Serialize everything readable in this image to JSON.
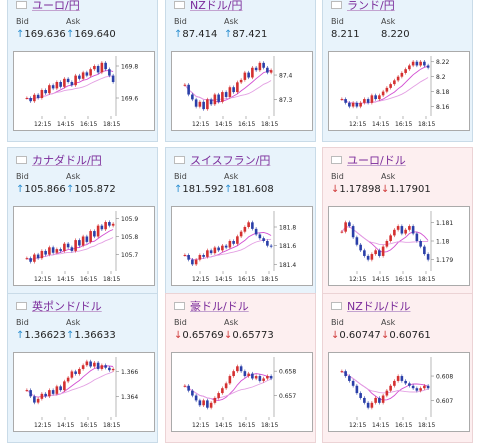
{
  "colors": {
    "up": "#2a8fd1",
    "down": "#d03a3a",
    "ma": "#d24fd2",
    "title": "#7a2a9a"
  },
  "labels": {
    "bid": "Bid",
    "ask": "Ask"
  },
  "panels": [
    {
      "name": "ユーロ/円",
      "flag": "eu-flag-icon",
      "dir": "up",
      "arrow": "↑",
      "bid": "169.636",
      "ask": "169.640",
      "chart_data": {
        "type": "candlestick",
        "x_ticks": [
          "12:15",
          "14:15",
          "16:15",
          "18:15"
        ],
        "y_ticks": [
          "169.8",
          "169.6"
        ],
        "yrange": [
          169.5,
          169.85
        ],
        "closes": [
          169.6,
          169.58,
          169.62,
          169.6,
          169.65,
          169.63,
          169.68,
          169.66,
          169.7,
          169.67,
          169.72,
          169.7,
          169.68,
          169.74,
          169.72,
          169.76,
          169.74,
          169.78,
          169.8,
          169.76,
          169.82,
          169.78,
          169.74,
          169.7
        ]
      }
    },
    {
      "name": "NZドル/円",
      "flag": "nz-flag-icon",
      "dir": "up",
      "arrow": "↑",
      "bid": "87.414",
      "ask": "87.421",
      "chart_data": {
        "type": "candlestick",
        "x_ticks": [
          "12:15",
          "14:15",
          "16:15",
          "18:15"
        ],
        "y_ticks": [
          "87.4",
          "87.3"
        ],
        "yrange": [
          87.24,
          87.47
        ],
        "closes": [
          87.36,
          87.32,
          87.3,
          87.27,
          87.29,
          87.26,
          87.3,
          87.28,
          87.32,
          87.29,
          87.33,
          87.31,
          87.35,
          87.33,
          87.37,
          87.38,
          87.41,
          87.39,
          87.43,
          87.42,
          87.45,
          87.43,
          87.41,
          87.42
        ]
      }
    },
    {
      "name": "ランド/円",
      "flag": "za-flag-icon",
      "dir": "up",
      "arrow": "",
      "bid": "8.211",
      "ask": "8.220",
      "chart_data": {
        "type": "candlestick",
        "x_ticks": [
          "12:15",
          "14:15",
          "16:15",
          "18:15"
        ],
        "y_ticks": [
          "8.22",
          "8.2",
          "8.18",
          "8.16"
        ],
        "yrange": [
          8.15,
          8.225
        ],
        "closes": [
          8.17,
          8.165,
          8.16,
          8.165,
          8.16,
          8.165,
          8.17,
          8.165,
          8.175,
          8.17,
          8.175,
          8.18,
          8.185,
          8.19,
          8.195,
          8.2,
          8.205,
          8.21,
          8.215,
          8.22,
          8.215,
          8.22,
          8.215,
          8.212
        ]
      }
    },
    {
      "name": "カナダドル/円",
      "flag": "ca-flag-icon",
      "dir": "up",
      "arrow": "↑",
      "bid": "105.866",
      "ask": "105.872",
      "chart_data": {
        "type": "candlestick",
        "x_ticks": [
          "12:15",
          "14:15",
          "16:15",
          "18:15"
        ],
        "y_ticks": [
          "105.9",
          "105.8",
          "105.7"
        ],
        "yrange": [
          105.62,
          105.93
        ],
        "closes": [
          105.68,
          105.66,
          105.7,
          105.68,
          105.72,
          105.7,
          105.74,
          105.71,
          105.73,
          105.72,
          105.76,
          105.74,
          105.72,
          105.78,
          105.75,
          105.8,
          105.77,
          105.83,
          105.8,
          105.86,
          105.84,
          105.88,
          105.86,
          105.87
        ]
      }
    },
    {
      "name": "スイスフラン/円",
      "flag": "ch-flag-icon",
      "dir": "up",
      "arrow": "↑",
      "bid": "181.592",
      "ask": "181.608",
      "chart_data": {
        "type": "candlestick",
        "x_ticks": [
          "12:15",
          "14:15",
          "16:15",
          "18:15"
        ],
        "y_ticks": [
          "181.8",
          "181.6",
          "181.4"
        ],
        "yrange": [
          181.35,
          181.95
        ],
        "closes": [
          181.5,
          181.45,
          181.4,
          181.45,
          181.5,
          181.48,
          181.55,
          181.52,
          181.58,
          181.55,
          181.6,
          181.58,
          181.65,
          181.62,
          181.7,
          181.75,
          181.8,
          181.85,
          181.78,
          181.72,
          181.68,
          181.65,
          181.6,
          181.59
        ]
      }
    },
    {
      "name": "ユーロ/ドル",
      "flag": "us-flag-icon",
      "dir": "down",
      "arrow": "↓",
      "bid": "1.17898",
      "ask": "1.17901",
      "chart_data": {
        "type": "candlestick",
        "x_ticks": [
          "12:15",
          "14:15",
          "16:15",
          "18:15"
        ],
        "y_ticks": [
          "1.181",
          "1.18",
          "1.179"
        ],
        "yrange": [
          1.1785,
          1.1815
        ],
        "closes": [
          1.1805,
          1.181,
          1.1808,
          1.1802,
          1.1798,
          1.1795,
          1.1792,
          1.179,
          1.1793,
          1.1795,
          1.1792,
          1.1797,
          1.18,
          1.1803,
          1.1806,
          1.1808,
          1.1804,
          1.1806,
          1.1808,
          1.1804,
          1.18,
          1.1797,
          1.1793,
          1.179
        ]
      }
    },
    {
      "name": "英ポンド/ドル",
      "flag": "us-flag-icon",
      "dir": "up",
      "arrow": "↑",
      "bid": "1.36623",
      "ask": "1.36633",
      "chart_data": {
        "type": "candlestick",
        "x_ticks": [
          "12:15",
          "14:15",
          "16:15",
          "18:15"
        ],
        "y_ticks": [
          "1.366",
          "1.364"
        ],
        "yrange": [
          1.3625,
          1.367
        ],
        "closes": [
          1.3645,
          1.364,
          1.3635,
          1.3638,
          1.3642,
          1.364,
          1.3645,
          1.3642,
          1.3648,
          1.3645,
          1.3652,
          1.3655,
          1.366,
          1.3658,
          1.3662,
          1.3665,
          1.3668,
          1.3664,
          1.3667,
          1.3662,
          1.3665,
          1.3663,
          1.3661,
          1.3662
        ]
      }
    },
    {
      "name": "豪ドル/ドル",
      "flag": "us-flag-icon",
      "dir": "down",
      "arrow": "↓",
      "bid": "0.65769",
      "ask": "0.65773",
      "chart_data": {
        "type": "candlestick",
        "x_ticks": [
          "12:15",
          "14:15",
          "16:15",
          "18:15"
        ],
        "y_ticks": [
          "0.658",
          "0.657"
        ],
        "yrange": [
          0.6562,
          0.6585
        ],
        "closes": [
          0.6574,
          0.6572,
          0.657,
          0.6568,
          0.6566,
          0.6568,
          0.6565,
          0.6567,
          0.6569,
          0.6571,
          0.6573,
          0.6575,
          0.6578,
          0.658,
          0.6582,
          0.658,
          0.6578,
          0.6579,
          0.6577,
          0.6578,
          0.6576,
          0.6577,
          0.6578,
          0.6577
        ]
      }
    },
    {
      "name": "NZドル/ドル",
      "flag": "us-flag-icon",
      "dir": "down",
      "arrow": "↓",
      "bid": "0.60747",
      "ask": "0.60761",
      "chart_data": {
        "type": "candlestick",
        "x_ticks": [
          "12:15",
          "14:15",
          "16:15",
          "18:15"
        ],
        "y_ticks": [
          "0.608",
          "0.607"
        ],
        "yrange": [
          0.6064,
          0.6087
        ],
        "closes": [
          0.6082,
          0.608,
          0.6078,
          0.6076,
          0.6073,
          0.6071,
          0.6069,
          0.6067,
          0.6069,
          0.6071,
          0.6069,
          0.6072,
          0.6074,
          0.6076,
          0.6078,
          0.608,
          0.6078,
          0.6077,
          0.6076,
          0.6075,
          0.6074,
          0.6075,
          0.6076,
          0.6075
        ]
      }
    }
  ]
}
